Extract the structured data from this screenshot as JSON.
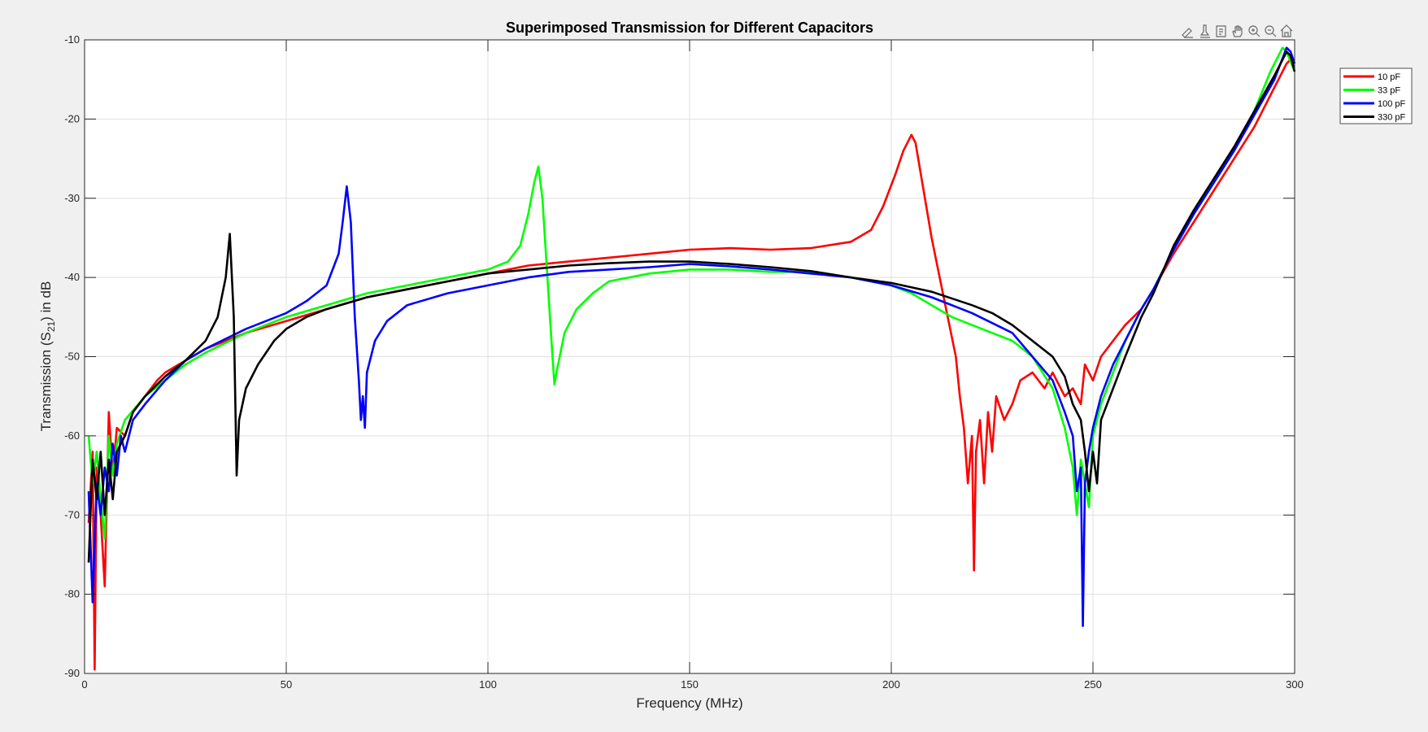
{
  "colors": {
    "figure_bg": "#f0f0f0",
    "axes_bg": "#ffffff",
    "grid": "#dfdfdf",
    "axis": "#262626"
  },
  "toolbar": {
    "icons": [
      "brush-icon",
      "datatip-icon",
      "export-icon",
      "pan-icon",
      "zoom-in-icon",
      "zoom-out-icon",
      "home-icon"
    ]
  },
  "chart_data": {
    "type": "line",
    "title": "Superimposed Transmission for Different Capacitors",
    "xlabel": "Frequency (MHz)",
    "ylabel_parts": {
      "pre": "Transmission (S",
      "sub": "21",
      "post": ") in dB"
    },
    "xlim": [
      0,
      300
    ],
    "ylim": [
      -90,
      -10
    ],
    "xticks": [
      0,
      50,
      100,
      150,
      200,
      250,
      300
    ],
    "yticks": [
      -90,
      -80,
      -70,
      -60,
      -50,
      -40,
      -30,
      -20,
      -10
    ],
    "grid": true,
    "legend_position": "outside-top-right",
    "series": [
      {
        "name": "10 pF",
        "color": "#ff0000",
        "points": [
          [
            1,
            -71
          ],
          [
            2,
            -62
          ],
          [
            2.5,
            -89.5
          ],
          [
            3,
            -64
          ],
          [
            4,
            -70
          ],
          [
            5,
            -79
          ],
          [
            6,
            -57
          ],
          [
            7,
            -65
          ],
          [
            8,
            -59
          ],
          [
            10,
            -60
          ],
          [
            12,
            -57
          ],
          [
            15,
            -55
          ],
          [
            18,
            -53
          ],
          [
            20,
            -52
          ],
          [
            25,
            -50.5
          ],
          [
            30,
            -49
          ],
          [
            35,
            -48
          ],
          [
            40,
            -47
          ],
          [
            50,
            -45.5
          ],
          [
            60,
            -44
          ],
          [
            70,
            -42.5
          ],
          [
            80,
            -41.5
          ],
          [
            90,
            -40.5
          ],
          [
            100,
            -39.5
          ],
          [
            110,
            -38.5
          ],
          [
            120,
            -38
          ],
          [
            130,
            -37.5
          ],
          [
            140,
            -37
          ],
          [
            150,
            -36.5
          ],
          [
            160,
            -36.3
          ],
          [
            170,
            -36.5
          ],
          [
            180,
            -36.3
          ],
          [
            190,
            -35.5
          ],
          [
            195,
            -34
          ],
          [
            198,
            -31
          ],
          [
            201,
            -27
          ],
          [
            203,
            -24
          ],
          [
            205,
            -22
          ],
          [
            206,
            -23
          ],
          [
            208,
            -29
          ],
          [
            210,
            -35
          ],
          [
            212,
            -40
          ],
          [
            214,
            -45
          ],
          [
            216,
            -50
          ],
          [
            217,
            -55
          ],
          [
            218,
            -59
          ],
          [
            219,
            -66
          ],
          [
            220,
            -60
          ],
          [
            220.5,
            -77
          ],
          [
            221,
            -62
          ],
          [
            222,
            -58
          ],
          [
            223,
            -66
          ],
          [
            224,
            -57
          ],
          [
            225,
            -62
          ],
          [
            226,
            -55
          ],
          [
            228,
            -58
          ],
          [
            230,
            -56
          ],
          [
            232,
            -53
          ],
          [
            235,
            -52
          ],
          [
            238,
            -54
          ],
          [
            240,
            -52
          ],
          [
            243,
            -55
          ],
          [
            245,
            -54
          ],
          [
            247,
            -56
          ],
          [
            248,
            -51
          ],
          [
            250,
            -53
          ],
          [
            252,
            -50
          ],
          [
            255,
            -48
          ],
          [
            258,
            -46
          ],
          [
            262,
            -44
          ],
          [
            265,
            -41.5
          ],
          [
            270,
            -37
          ],
          [
            275,
            -33
          ],
          [
            280,
            -29
          ],
          [
            285,
            -25
          ],
          [
            290,
            -21
          ],
          [
            295,
            -16
          ],
          [
            298,
            -13
          ],
          [
            299,
            -12.5
          ],
          [
            300,
            -13
          ]
        ]
      },
      {
        "name": "33 pF",
        "color": "#00ff00",
        "points": [
          [
            1,
            -60
          ],
          [
            2,
            -66
          ],
          [
            3,
            -62
          ],
          [
            4,
            -68
          ],
          [
            5,
            -73
          ],
          [
            6,
            -60
          ],
          [
            7,
            -65
          ],
          [
            8,
            -61
          ],
          [
            10,
            -58
          ],
          [
            15,
            -55
          ],
          [
            20,
            -53
          ],
          [
            25,
            -51
          ],
          [
            30,
            -49.5
          ],
          [
            40,
            -47
          ],
          [
            50,
            -45
          ],
          [
            60,
            -43.5
          ],
          [
            70,
            -42
          ],
          [
            80,
            -41
          ],
          [
            90,
            -40
          ],
          [
            100,
            -39
          ],
          [
            105,
            -38
          ],
          [
            108,
            -36
          ],
          [
            110,
            -32
          ],
          [
            111.5,
            -28
          ],
          [
            112.5,
            -26
          ],
          [
            113.5,
            -30
          ],
          [
            115,
            -42
          ],
          [
            116,
            -50
          ],
          [
            116.5,
            -53.5
          ],
          [
            117,
            -52
          ],
          [
            119,
            -47
          ],
          [
            122,
            -44
          ],
          [
            126,
            -42
          ],
          [
            130,
            -40.5
          ],
          [
            140,
            -39.5
          ],
          [
            150,
            -39
          ],
          [
            160,
            -39
          ],
          [
            170,
            -39.3
          ],
          [
            180,
            -39.3
          ],
          [
            190,
            -40
          ],
          [
            200,
            -41
          ],
          [
            205,
            -42
          ],
          [
            210,
            -43.5
          ],
          [
            215,
            -45
          ],
          [
            220,
            -46
          ],
          [
            225,
            -47
          ],
          [
            230,
            -48
          ],
          [
            235,
            -50
          ],
          [
            240,
            -54
          ],
          [
            243,
            -59
          ],
          [
            245,
            -64
          ],
          [
            246,
            -70
          ],
          [
            247,
            -63
          ],
          [
            248,
            -66
          ],
          [
            249,
            -69
          ],
          [
            250,
            -60
          ],
          [
            252,
            -56
          ],
          [
            255,
            -52
          ],
          [
            258,
            -48
          ],
          [
            262,
            -44
          ],
          [
            265,
            -41.5
          ],
          [
            270,
            -36.5
          ],
          [
            275,
            -32
          ],
          [
            280,
            -28
          ],
          [
            285,
            -24
          ],
          [
            290,
            -19
          ],
          [
            294,
            -14
          ],
          [
            297,
            -11
          ],
          [
            298,
            -11.5
          ],
          [
            300,
            -14
          ]
        ]
      },
      {
        "name": "100 pF",
        "color": "#0000ff",
        "points": [
          [
            1,
            -67
          ],
          [
            2,
            -81
          ],
          [
            3,
            -66
          ],
          [
            4,
            -70
          ],
          [
            5,
            -64
          ],
          [
            6,
            -67
          ],
          [
            7,
            -61
          ],
          [
            8,
            -65
          ],
          [
            9,
            -60
          ],
          [
            10,
            -62
          ],
          [
            12,
            -58
          ],
          [
            15,
            -56
          ],
          [
            20,
            -53
          ],
          [
            25,
            -50.5
          ],
          [
            30,
            -49
          ],
          [
            40,
            -46.5
          ],
          [
            50,
            -44.5
          ],
          [
            55,
            -43
          ],
          [
            60,
            -41
          ],
          [
            63,
            -37
          ],
          [
            64,
            -33
          ],
          [
            65,
            -28.5
          ],
          [
            66,
            -33
          ],
          [
            67,
            -45
          ],
          [
            68,
            -53
          ],
          [
            68.5,
            -58
          ],
          [
            69,
            -55
          ],
          [
            69.5,
            -59
          ],
          [
            70,
            -52
          ],
          [
            72,
            -48
          ],
          [
            75,
            -45.5
          ],
          [
            80,
            -43.5
          ],
          [
            90,
            -42
          ],
          [
            100,
            -41
          ],
          [
            110,
            -40
          ],
          [
            120,
            -39.3
          ],
          [
            130,
            -39
          ],
          [
            140,
            -38.7
          ],
          [
            150,
            -38.3
          ],
          [
            160,
            -38.6
          ],
          [
            170,
            -39
          ],
          [
            180,
            -39.5
          ],
          [
            190,
            -40
          ],
          [
            200,
            -41
          ],
          [
            210,
            -42.5
          ],
          [
            220,
            -44.5
          ],
          [
            230,
            -47
          ],
          [
            235,
            -50
          ],
          [
            240,
            -53
          ],
          [
            243,
            -57
          ],
          [
            245,
            -60
          ],
          [
            246,
            -67
          ],
          [
            247,
            -64
          ],
          [
            247.5,
            -84
          ],
          [
            248,
            -66
          ],
          [
            249,
            -62
          ],
          [
            250,
            -59
          ],
          [
            252,
            -55
          ],
          [
            255,
            -51
          ],
          [
            258,
            -48
          ],
          [
            262,
            -44
          ],
          [
            265,
            -41.5
          ],
          [
            270,
            -36.5
          ],
          [
            275,
            -32
          ],
          [
            280,
            -28
          ],
          [
            285,
            -24
          ],
          [
            290,
            -19.5
          ],
          [
            295,
            -15
          ],
          [
            298,
            -11
          ],
          [
            299,
            -11.5
          ],
          [
            300,
            -13
          ]
        ]
      },
      {
        "name": "330 pF",
        "color": "#000000",
        "points": [
          [
            1,
            -76
          ],
          [
            2,
            -63
          ],
          [
            3,
            -68
          ],
          [
            4,
            -62
          ],
          [
            5,
            -70
          ],
          [
            6,
            -63
          ],
          [
            7,
            -68
          ],
          [
            8,
            -62
          ],
          [
            10,
            -60
          ],
          [
            12,
            -57
          ],
          [
            15,
            -55
          ],
          [
            20,
            -52.5
          ],
          [
            25,
            -50.5
          ],
          [
            30,
            -48
          ],
          [
            33,
            -45
          ],
          [
            35,
            -40
          ],
          [
            36,
            -34.5
          ],
          [
            37,
            -45
          ],
          [
            37.7,
            -65
          ],
          [
            38.3,
            -58
          ],
          [
            40,
            -54
          ],
          [
            43,
            -51
          ],
          [
            47,
            -48
          ],
          [
            50,
            -46.5
          ],
          [
            55,
            -45
          ],
          [
            60,
            -44
          ],
          [
            70,
            -42.5
          ],
          [
            80,
            -41.5
          ],
          [
            90,
            -40.5
          ],
          [
            100,
            -39.5
          ],
          [
            110,
            -39
          ],
          [
            120,
            -38.5
          ],
          [
            130,
            -38.2
          ],
          [
            140,
            -38
          ],
          [
            150,
            -38
          ],
          [
            160,
            -38.3
          ],
          [
            170,
            -38.7
          ],
          [
            180,
            -39.2
          ],
          [
            190,
            -40
          ],
          [
            200,
            -40.7
          ],
          [
            210,
            -41.8
          ],
          [
            220,
            -43.5
          ],
          [
            225,
            -44.5
          ],
          [
            230,
            -46
          ],
          [
            235,
            -48
          ],
          [
            240,
            -50
          ],
          [
            243,
            -52.5
          ],
          [
            245,
            -56
          ],
          [
            247,
            -58
          ],
          [
            248,
            -62
          ],
          [
            249,
            -67
          ],
          [
            250,
            -62
          ],
          [
            251,
            -66
          ],
          [
            252,
            -58
          ],
          [
            255,
            -54
          ],
          [
            258,
            -50
          ],
          [
            262,
            -45
          ],
          [
            265,
            -42
          ],
          [
            270,
            -36
          ],
          [
            275,
            -31.5
          ],
          [
            280,
            -27.5
          ],
          [
            285,
            -23.5
          ],
          [
            290,
            -19
          ],
          [
            295,
            -14.5
          ],
          [
            298,
            -11.5
          ],
          [
            299,
            -12
          ],
          [
            300,
            -14
          ]
        ]
      }
    ]
  }
}
